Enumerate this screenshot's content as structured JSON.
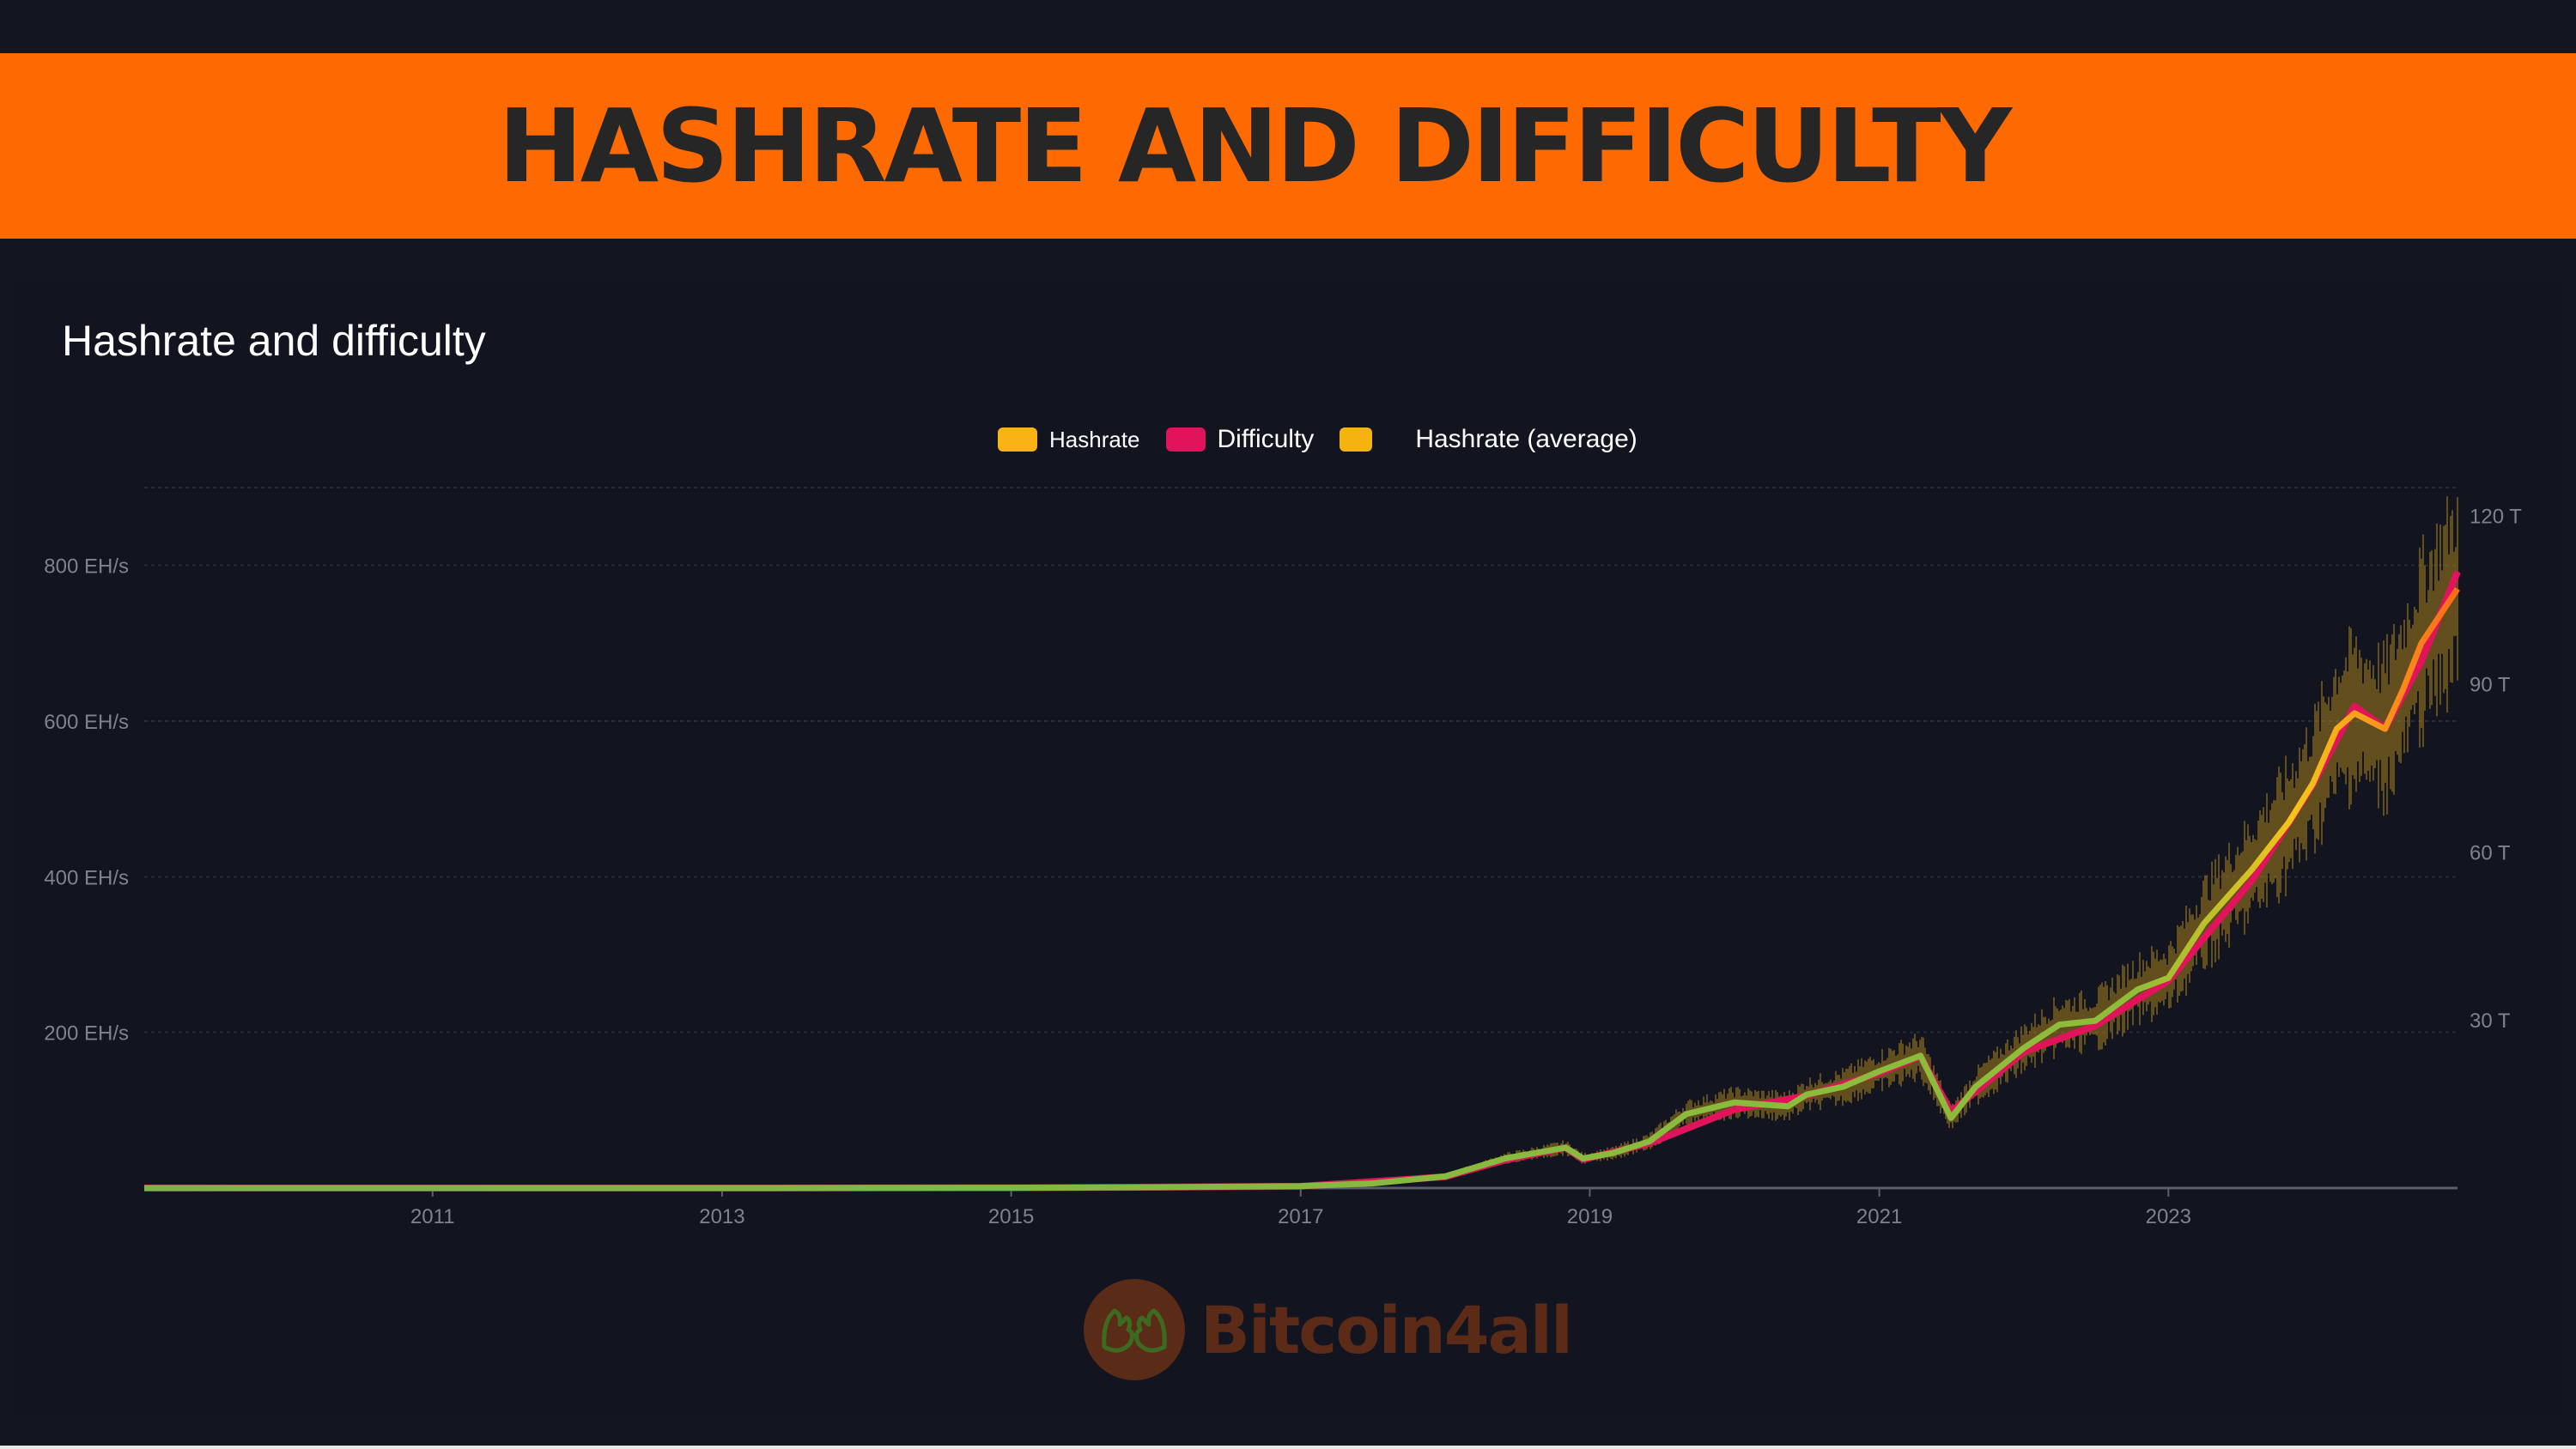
{
  "page": {
    "banner_title": "HASHRATE AND DIFFICULTY"
  },
  "logo": {
    "text": "Bitcoin4all",
    "icon": "hands-icon"
  },
  "colors": {
    "banner": "#ff6a00",
    "background": "#131520",
    "hashrate": "#f8b415",
    "difficulty": "#e0135b",
    "hashrate_average": "#f4b30f",
    "trend_line": "#7ab34a"
  },
  "chart_data": {
    "type": "line",
    "title": "Hashrate and difficulty",
    "legend": {
      "placement": "top-center",
      "items": [
        "Hashrate",
        "Difficulty",
        "Hashrate (average)"
      ]
    },
    "x_ticks": [
      "2011",
      "2013",
      "2015",
      "2017",
      "2019",
      "2021",
      "2023"
    ],
    "xlim": [
      "2009-01-03",
      "2024-12-31"
    ],
    "y_left": {
      "unit": "EH/s",
      "ticks": [
        {
          "value": 200,
          "label": "200 EH/s"
        },
        {
          "value": 400,
          "label": "400 EH/s"
        },
        {
          "value": 600,
          "label": "600 EH/s"
        },
        {
          "value": 800,
          "label": "800 EH/s"
        }
      ],
      "lim": [
        0,
        900
      ]
    },
    "y_right": {
      "unit": "T",
      "ticks": [
        {
          "value": 30,
          "label": "30 T"
        },
        {
          "value": 60,
          "label": "60 T"
        },
        {
          "value": 90,
          "label": "90 T"
        },
        {
          "value": 120,
          "label": "120 T"
        }
      ],
      "lim": [
        0,
        125
      ]
    },
    "grid": true,
    "series": [
      {
        "name": "Hashrate (average)",
        "axis": "left",
        "x": [
          "2009-01-03",
          "2011-01-01",
          "2013-01-01",
          "2015-01-01",
          "2016-01-01",
          "2017-01-01",
          "2017-07-01",
          "2018-01-01",
          "2018-06-01",
          "2018-11-01",
          "2018-12-15",
          "2019-03-01",
          "2019-06-01",
          "2019-09-01",
          "2020-01-01",
          "2020-05-15",
          "2020-07-01",
          "2020-10-01",
          "2021-01-01",
          "2021-04-15",
          "2021-07-01",
          "2021-09-01",
          "2022-01-01",
          "2022-04-01",
          "2022-07-01",
          "2022-10-15",
          "2023-01-01",
          "2023-04-01",
          "2023-08-01",
          "2023-11-01",
          "2024-01-01",
          "2024-03-01",
          "2024-04-15",
          "2024-07-01",
          "2024-08-15",
          "2024-10-01",
          "2024-12-31"
        ],
        "y": [
          0,
          0,
          0.02,
          0.4,
          1,
          2.5,
          6,
          15,
          38,
          52,
          38,
          45,
          60,
          95,
          110,
          105,
          120,
          130,
          150,
          170,
          90,
          130,
          180,
          210,
          215,
          255,
          270,
          340,
          410,
          470,
          520,
          590,
          610,
          590,
          640,
          700,
          770
        ]
      },
      {
        "name": "Difficulty",
        "axis": "right",
        "x": [
          "2009-01-03",
          "2013-01-01",
          "2015-01-01",
          "2017-01-01",
          "2018-01-01",
          "2018-06-01",
          "2018-11-01",
          "2018-12-15",
          "2019-06-01",
          "2020-01-01",
          "2020-07-01",
          "2021-01-01",
          "2021-04-15",
          "2021-07-01",
          "2022-01-01",
          "2022-07-01",
          "2023-01-01",
          "2023-08-01",
          "2024-01-01",
          "2024-04-15",
          "2024-07-01",
          "2024-10-01",
          "2024-12-31"
        ],
        "y": [
          0,
          0.003,
          0.05,
          0.3,
          2,
          5,
          7.2,
          5.1,
          8,
          14,
          16.5,
          20.5,
          23.5,
          13.6,
          24.3,
          29,
          37,
          55,
          72,
          86,
          82,
          94,
          110
        ]
      }
    ]
  }
}
